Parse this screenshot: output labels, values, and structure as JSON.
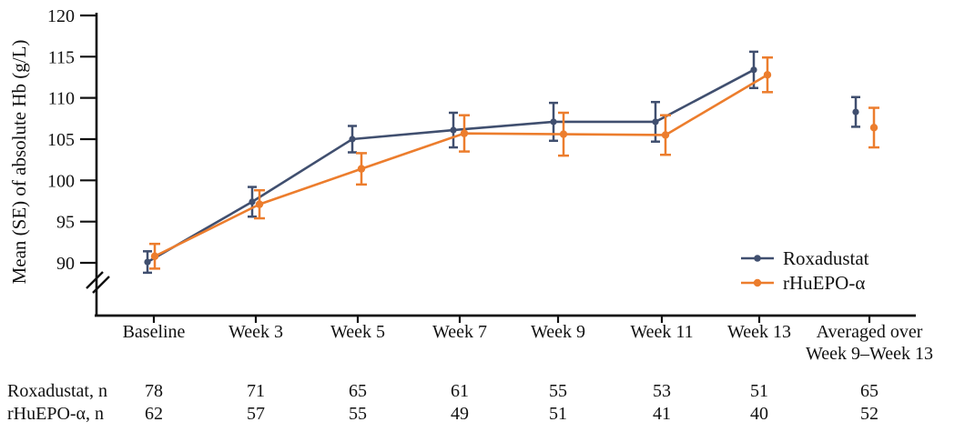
{
  "figure_type": "clinical-trial-line-chart",
  "chart_data": {
    "type": "line",
    "title": "",
    "xlabel": "",
    "ylabel": "Mean (SE) of absolute Hb (g/L)",
    "ylim": [
      90,
      120
    ],
    "yticks": [
      90,
      95,
      100,
      105,
      110,
      115,
      120
    ],
    "y_axis_break": true,
    "grid": false,
    "legend_position": "inside lower right",
    "categories": [
      "Baseline",
      "Week 3",
      "Week 5",
      "Week 7",
      "Week 9",
      "Week 11",
      "Week 13",
      "Averaged over Week 9–Week 13"
    ],
    "x_labels": [
      {
        "lines": [
          "Baseline"
        ]
      },
      {
        "lines": [
          "Week 3"
        ]
      },
      {
        "lines": [
          "Week 5"
        ]
      },
      {
        "lines": [
          "Week 7"
        ]
      },
      {
        "lines": [
          "Week 9"
        ]
      },
      {
        "lines": [
          "Week 11"
        ]
      },
      {
        "lines": [
          "Week 13"
        ]
      },
      {
        "lines": [
          "Averaged over",
          "Week 9–Week 13"
        ]
      }
    ],
    "series": [
      {
        "name": "Roxadustat",
        "color": "#404F6F",
        "marker": "circle",
        "values": [
          90.1,
          97.4,
          105.0,
          106.1,
          107.1,
          107.1,
          113.4,
          108.3
        ],
        "se": [
          1.3,
          1.8,
          1.6,
          2.1,
          2.3,
          2.4,
          2.2,
          1.8
        ],
        "line_connects_first_n": 7
      },
      {
        "name": "rHuEPO-α",
        "color": "#EC7D2D",
        "marker": "circle",
        "values": [
          90.8,
          97.1,
          101.4,
          105.7,
          105.6,
          105.5,
          112.8,
          106.4
        ],
        "se": [
          1.5,
          1.7,
          1.9,
          2.2,
          2.6,
          2.4,
          2.1,
          2.4
        ],
        "line_connects_first_n": 7
      }
    ]
  },
  "counts_table": {
    "rows": [
      {
        "label": "Roxadustat, n",
        "values": [
          "78",
          "71",
          "65",
          "61",
          "55",
          "53",
          "51",
          "65"
        ]
      },
      {
        "label": "rHuEPO-α, n",
        "values": [
          "62",
          "57",
          "55",
          "49",
          "51",
          "41",
          "40",
          "52"
        ]
      }
    ]
  },
  "colors": {
    "roxadustat": "#404F6F",
    "rhuepo": "#EC7D2D",
    "axis": "#111111",
    "text": "#111111",
    "background": "#FFFFFF"
  }
}
